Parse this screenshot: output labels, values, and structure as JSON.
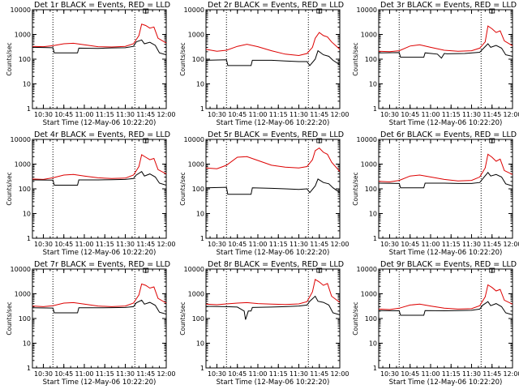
{
  "chart_data": {
    "type": "line",
    "layout": "3x3",
    "y_scale": "log",
    "ylim": [
      1,
      10000
    ],
    "y_ticks": [
      "1",
      "10",
      "100",
      "1000",
      "10000"
    ],
    "ylabel": "Counts/sec",
    "xlabel": "Start Time (12-May-06 10:22:20)",
    "x_ticks": [
      "10:30",
      "10:45",
      "11:00",
      "11:15",
      "11:30",
      "11:45",
      "12:00"
    ],
    "xlim": [
      "10:22",
      "12:00"
    ],
    "vertical_markers": [
      "10:37",
      "11:37"
    ],
    "series_colors": {
      "events": "#000000",
      "lld": "#dd0000"
    },
    "panels": [
      {
        "title": "Det 1r BLACK = Events, RED = LLD",
        "events": {
          "x": [
            "10:22",
            "10:37",
            "10:38",
            "10:55",
            "10:56",
            "11:10",
            "11:15",
            "11:20",
            "11:30",
            "11:36",
            "11:38",
            "11:42",
            "11:44",
            "11:48",
            "11:52",
            "11:55",
            "12:00"
          ],
          "y": [
            300,
            290,
            180,
            180,
            280,
            270,
            280,
            285,
            290,
            330,
            500,
            600,
            420,
            480,
            360,
            180,
            150
          ]
        },
        "lld": {
          "x": [
            "10:22",
            "10:30",
            "10:37",
            "10:45",
            "10:52",
            "11:00",
            "11:10",
            "11:20",
            "11:30",
            "11:36",
            "11:40",
            "11:42",
            "11:45",
            "11:48",
            "11:51",
            "11:54",
            "12:00"
          ],
          "y": [
            330,
            320,
            350,
            420,
            440,
            380,
            320,
            310,
            330,
            420,
            900,
            2600,
            2300,
            1800,
            2000,
            700,
            450
          ]
        }
      },
      {
        "title": "Det 2r BLACK = Events, RED = LLD",
        "events": {
          "x": [
            "10:22",
            "10:37",
            "10:38",
            "10:55",
            "10:56",
            "11:10",
            "11:20",
            "11:30",
            "11:36",
            "11:38",
            "11:42",
            "11:44",
            "11:48",
            "11:52",
            "11:55",
            "12:00"
          ],
          "y": [
            90,
            95,
            55,
            55,
            90,
            90,
            85,
            80,
            80,
            55,
            100,
            220,
            150,
            130,
            90,
            60
          ]
        },
        "lld": {
          "x": [
            "10:22",
            "10:30",
            "10:37",
            "10:45",
            "10:52",
            "11:00",
            "11:10",
            "11:20",
            "11:30",
            "11:36",
            "11:40",
            "11:42",
            "11:45",
            "11:48",
            "11:51",
            "11:54",
            "12:00"
          ],
          "y": [
            250,
            210,
            230,
            330,
            400,
            320,
            220,
            160,
            140,
            170,
            300,
            700,
            1200,
            900,
            800,
            500,
            250
          ]
        }
      },
      {
        "title": "Det 3r BLACK = Events, RED = LLD",
        "events": {
          "x": [
            "10:22",
            "10:37",
            "10:38",
            "10:55",
            "10:56",
            "11:05",
            "11:08",
            "11:10",
            "11:12",
            "11:25",
            "11:36",
            "11:38",
            "11:42",
            "11:44",
            "11:48",
            "11:52",
            "11:55",
            "12:00"
          ],
          "y": [
            180,
            185,
            120,
            120,
            180,
            160,
            110,
            170,
            165,
            170,
            190,
            250,
            420,
            300,
            360,
            280,
            150,
            130
          ]
        },
        "lld": {
          "x": [
            "10:22",
            "10:30",
            "10:37",
            "10:45",
            "10:52",
            "11:00",
            "11:10",
            "11:20",
            "11:30",
            "11:36",
            "11:40",
            "11:42",
            "11:45",
            "11:48",
            "11:51",
            "11:54",
            "12:00"
          ],
          "y": [
            210,
            200,
            220,
            340,
            380,
            300,
            230,
            210,
            220,
            280,
            500,
            2200,
            1700,
            1200,
            1400,
            550,
            350
          ]
        }
      },
      {
        "title": "Det 4r BLACK = Events, RED = LLD",
        "events": {
          "x": [
            "10:22",
            "10:37",
            "10:38",
            "10:55",
            "10:56",
            "11:10",
            "11:20",
            "11:30",
            "11:36",
            "11:38",
            "11:42",
            "11:44",
            "11:48",
            "11:52",
            "11:55",
            "12:00"
          ],
          "y": [
            230,
            225,
            140,
            140,
            230,
            230,
            235,
            240,
            260,
            360,
            500,
            330,
            400,
            300,
            170,
            140
          ]
        },
        "lld": {
          "x": [
            "10:22",
            "10:30",
            "10:37",
            "10:45",
            "10:52",
            "11:00",
            "11:10",
            "11:20",
            "11:30",
            "11:36",
            "11:40",
            "11:42",
            "11:45",
            "11:48",
            "11:51",
            "11:54",
            "12:00"
          ],
          "y": [
            250,
            240,
            280,
            360,
            380,
            330,
            280,
            260,
            270,
            360,
            800,
            2400,
            1900,
            1500,
            1700,
            600,
            400
          ]
        }
      },
      {
        "title": "Det 5r BLACK = Events, RED = LLD",
        "events": {
          "x": [
            "10:22",
            "10:37",
            "10:38",
            "10:55",
            "10:56",
            "11:10",
            "11:20",
            "11:30",
            "11:36",
            "11:38",
            "11:42",
            "11:44",
            "11:48",
            "11:52",
            "11:55",
            "12:00"
          ],
          "y": [
            110,
            115,
            60,
            60,
            110,
            105,
            100,
            95,
            100,
            70,
            130,
            250,
            180,
            160,
            110,
            70
          ]
        },
        "lld": {
          "x": [
            "10:22",
            "10:30",
            "10:37",
            "10:45",
            "10:52",
            "11:00",
            "11:10",
            "11:20",
            "11:30",
            "11:36",
            "11:40",
            "11:42",
            "11:45",
            "11:48",
            "11:51",
            "11:54",
            "12:00"
          ],
          "y": [
            700,
            650,
            900,
            1900,
            2000,
            1400,
            900,
            750,
            700,
            800,
            1500,
            3500,
            4500,
            3000,
            2500,
            1200,
            500
          ]
        }
      },
      {
        "title": "Det 6r BLACK = Events, RED = LLD",
        "events": {
          "x": [
            "10:22",
            "10:37",
            "10:38",
            "10:55",
            "10:56",
            "11:10",
            "11:20",
            "11:30",
            "11:36",
            "11:38",
            "11:42",
            "11:44",
            "11:48",
            "11:52",
            "11:55",
            "12:00"
          ],
          "y": [
            170,
            165,
            110,
            110,
            170,
            170,
            165,
            165,
            180,
            250,
            460,
            330,
            380,
            300,
            160,
            130
          ]
        },
        "lld": {
          "x": [
            "10:22",
            "10:30",
            "10:37",
            "10:45",
            "10:52",
            "11:00",
            "11:10",
            "11:20",
            "11:30",
            "11:36",
            "11:40",
            "11:42",
            "11:45",
            "11:48",
            "11:51",
            "11:54",
            "12:00"
          ],
          "y": [
            200,
            190,
            220,
            330,
            360,
            300,
            240,
            210,
            220,
            300,
            700,
            2500,
            1900,
            1300,
            1600,
            550,
            380
          ]
        }
      },
      {
        "title": "Det 7r BLACK = Events, RED = LLD",
        "events": {
          "x": [
            "10:22",
            "10:37",
            "10:38",
            "10:55",
            "10:56",
            "11:10",
            "11:20",
            "11:30",
            "11:36",
            "11:38",
            "11:42",
            "11:44",
            "11:48",
            "11:52",
            "11:55",
            "12:00"
          ],
          "y": [
            270,
            265,
            170,
            170,
            270,
            270,
            275,
            280,
            300,
            430,
            550,
            380,
            450,
            340,
            180,
            150
          ]
        },
        "lld": {
          "x": [
            "10:22",
            "10:30",
            "10:37",
            "10:45",
            "10:52",
            "11:00",
            "11:10",
            "11:20",
            "11:30",
            "11:36",
            "11:40",
            "11:42",
            "11:45",
            "11:48",
            "11:51",
            "11:54",
            "12:00"
          ],
          "y": [
            320,
            300,
            330,
            420,
            440,
            380,
            320,
            300,
            320,
            420,
            900,
            2500,
            2200,
            1700,
            1900,
            650,
            420
          ]
        }
      },
      {
        "title": "Det 8r BLACK = Events, RED = LLD",
        "events": {
          "x": [
            "10:22",
            "10:37",
            "10:45",
            "10:50",
            "10:51",
            "10:53",
            "10:55",
            "10:56",
            "11:10",
            "11:20",
            "11:30",
            "11:36",
            "11:38",
            "11:42",
            "11:44",
            "11:48",
            "11:52",
            "11:55",
            "12:00"
          ],
          "y": [
            310,
            300,
            290,
            200,
            90,
            200,
            200,
            280,
            290,
            300,
            320,
            350,
            500,
            800,
            500,
            450,
            350,
            170,
            140
          ]
        },
        "lld": {
          "x": [
            "10:22",
            "10:30",
            "10:37",
            "10:45",
            "10:52",
            "11:00",
            "11:10",
            "11:20",
            "11:30",
            "11:36",
            "11:40",
            "11:42",
            "11:45",
            "11:48",
            "11:51",
            "11:54",
            "12:00"
          ],
          "y": [
            380,
            360,
            390,
            420,
            440,
            400,
            380,
            370,
            390,
            480,
            1200,
            3800,
            3000,
            2200,
            2600,
            800,
            450
          ]
        }
      },
      {
        "title": "Det 9r BLACK = Events, RED = LLD",
        "events": {
          "x": [
            "10:22",
            "10:37",
            "10:38",
            "10:55",
            "10:56",
            "11:10",
            "11:20",
            "11:30",
            "11:36",
            "11:38",
            "11:42",
            "11:44",
            "11:48",
            "11:52",
            "11:55",
            "12:00"
          ],
          "y": [
            210,
            205,
            135,
            135,
            210,
            205,
            210,
            215,
            240,
            340,
            480,
            330,
            400,
            300,
            170,
            140
          ]
        },
        "lld": {
          "x": [
            "10:22",
            "10:30",
            "10:37",
            "10:45",
            "10:52",
            "11:00",
            "11:10",
            "11:20",
            "11:30",
            "11:36",
            "11:40",
            "11:42",
            "11:45",
            "11:48",
            "11:51",
            "11:54",
            "12:00"
          ],
          "y": [
            240,
            230,
            260,
            350,
            380,
            320,
            260,
            240,
            250,
            330,
            750,
            2300,
            1800,
            1300,
            1500,
            550,
            380
          ]
        }
      }
    ]
  }
}
